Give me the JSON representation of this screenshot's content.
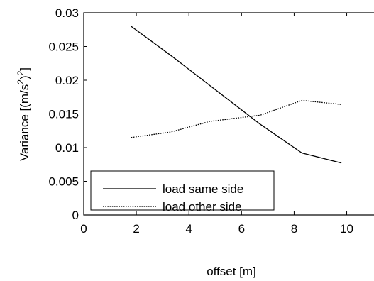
{
  "chart_data": {
    "type": "line",
    "xlabel": "offset [m]",
    "ylabel_parts": [
      "Variance [(m/s",
      "2",
      ")",
      "2",
      "]"
    ],
    "xlim": [
      0,
      11.2
    ],
    "ylim": [
      0,
      0.03
    ],
    "xticks": [
      0,
      2,
      4,
      6,
      8,
      10
    ],
    "xtick_labels": [
      "0",
      "2",
      "4",
      "6",
      "8",
      "10"
    ],
    "yticks": [
      0,
      0.005,
      0.01,
      0.015,
      0.02,
      0.025,
      0.03
    ],
    "ytick_labels": [
      "0",
      "0.005",
      "0.01",
      "0.015",
      "0.02",
      "0.025",
      "0.03"
    ],
    "grid": false,
    "legend_position": "bottom-left",
    "series": [
      {
        "name": "load same side",
        "style": "solid",
        "x": [
          1.8,
          3.3,
          4.8,
          6.7,
          8.3,
          9.8
        ],
        "y": [
          0.028,
          0.0237,
          0.0192,
          0.0135,
          0.0092,
          0.0077
        ]
      },
      {
        "name": "load other side",
        "style": "dotted",
        "x": [
          1.8,
          3.3,
          4.8,
          6.7,
          8.3,
          9.8
        ],
        "y": [
          0.0115,
          0.0123,
          0.0139,
          0.0148,
          0.017,
          0.0164
        ]
      }
    ]
  }
}
